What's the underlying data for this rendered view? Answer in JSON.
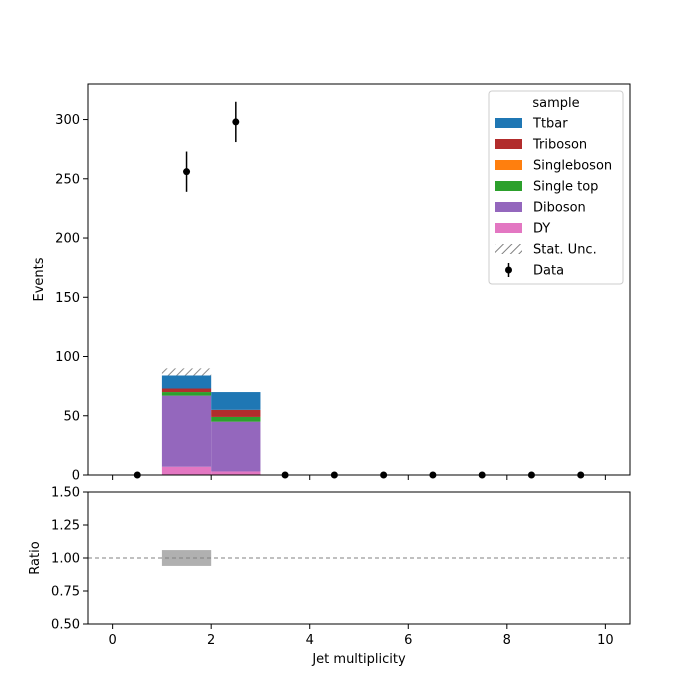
{
  "chart_data": [
    {
      "type": "bar",
      "stacked": true,
      "panel": "main",
      "ylabel": "Events",
      "xlim": [
        -0.5,
        10.5
      ],
      "ylim": [
        0,
        330
      ],
      "yticks": [
        0,
        50,
        100,
        150,
        200,
        250,
        300
      ],
      "bins": [
        [
          1,
          2
        ],
        [
          2,
          3
        ]
      ],
      "series": [
        {
          "name": "DY",
          "color": "#e377c2",
          "values": [
            7,
            3
          ]
        },
        {
          "name": "Diboson",
          "color": "#9467bd",
          "values": [
            60,
            42
          ]
        },
        {
          "name": "Single top",
          "color": "#2ca02c",
          "values": [
            3,
            4
          ]
        },
        {
          "name": "Singleboson",
          "color": "#ff7f0e",
          "values": [
            0,
            0
          ]
        },
        {
          "name": "Triboson",
          "color": "#b22c2c",
          "values": [
            3,
            6
          ]
        },
        {
          "name": "Ttbar",
          "color": "#1f77b4",
          "values": [
            11,
            15
          ]
        }
      ],
      "stat_unc": [
        {
          "bin": [
            1,
            2
          ],
          "low": 84,
          "high": 90
        }
      ],
      "data_points": {
        "name": "Data",
        "x": [
          0.5,
          1.5,
          2.5,
          3.5,
          4.5,
          5.5,
          6.5,
          7.5,
          8.5,
          9.5
        ],
        "y": [
          0,
          256,
          298,
          0,
          0,
          0,
          0,
          0,
          0,
          0
        ],
        "err": [
          0,
          17,
          17,
          0,
          0,
          0,
          0,
          0,
          0,
          0
        ]
      },
      "legend": {
        "title": "sample",
        "position": "top-right",
        "entries": [
          {
            "label": "Ttbar",
            "kind": "patch",
            "color": "#1f77b4"
          },
          {
            "label": "Triboson",
            "kind": "patch",
            "color": "#b22c2c"
          },
          {
            "label": "Singleboson",
            "kind": "patch",
            "color": "#ff7f0e"
          },
          {
            "label": "Single top",
            "kind": "patch",
            "color": "#2ca02c"
          },
          {
            "label": "Diboson",
            "kind": "patch",
            "color": "#9467bd"
          },
          {
            "label": "DY",
            "kind": "patch",
            "color": "#e377c2"
          },
          {
            "label": "Stat. Unc.",
            "kind": "hatch",
            "color": "#808080"
          },
          {
            "label": "Data",
            "kind": "errorbar",
            "color": "#000000"
          }
        ]
      }
    },
    {
      "type": "bar",
      "panel": "ratio",
      "xlabel": "Jet multiplicity",
      "ylabel": "Ratio",
      "xlim": [
        -0.5,
        10.5
      ],
      "ylim": [
        0.5,
        1.5
      ],
      "xticks": [
        0,
        2,
        4,
        6,
        8,
        10
      ],
      "yticks": [
        "0.50",
        "0.75",
        "1.00",
        "1.25",
        "1.50"
      ],
      "reference_line": 1.0,
      "unc_bands": [
        {
          "bin": [
            1,
            2
          ],
          "low": 0.94,
          "high": 1.06,
          "color": "#b0b0b0"
        }
      ]
    }
  ]
}
